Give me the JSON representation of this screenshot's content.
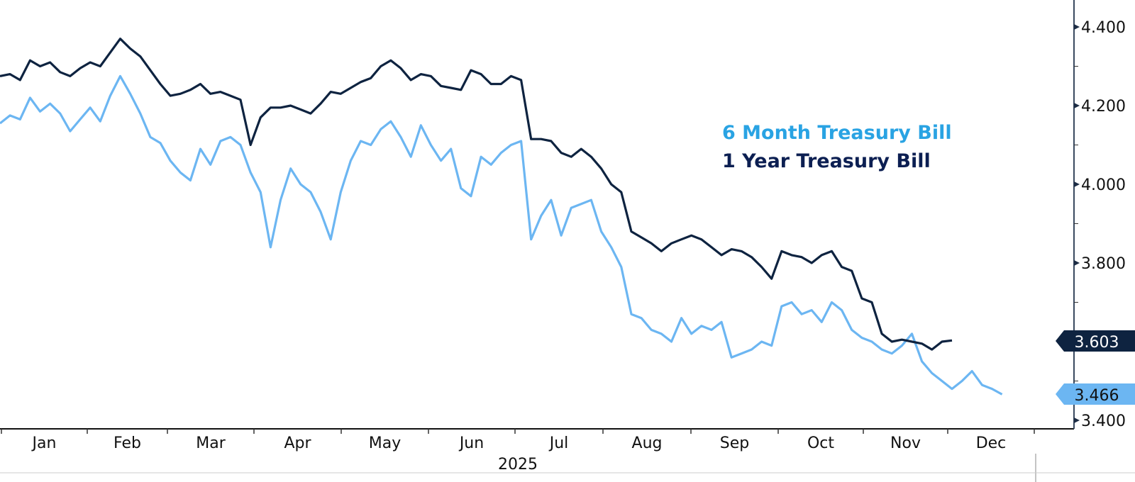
{
  "chart_data": {
    "type": "line",
    "title": "",
    "xlabel": "2025",
    "ylabel": "",
    "year_label": "2025",
    "ylim": [
      3.38,
      4.46
    ],
    "y_axis_position": "right",
    "y_ticks": [
      "4.400",
      "4.200",
      "4.000",
      "3.800",
      "3.400"
    ],
    "y_tick_values": [
      4.4,
      4.2,
      4.0,
      3.8,
      3.4
    ],
    "x_ticks": [
      "Jan",
      "Feb",
      "Mar",
      "Apr",
      "May",
      "Jun",
      "Jul",
      "Aug",
      "Sep",
      "Oct",
      "Nov",
      "Dec"
    ],
    "grid": false,
    "legend_position": "inside-right",
    "legend": [
      "6 Month Treasury Bill",
      "1 Year Treasury Bill"
    ],
    "series": [
      {
        "name": "6 Month Treasury Bill",
        "color": "#6cb6f2",
        "last_value": "3.466",
        "x": [
          0,
          0.5,
          1,
          1.5,
          2,
          2.5,
          3,
          3.5,
          4,
          4.5,
          5,
          5.5,
          6,
          6.5,
          7,
          7.5,
          8,
          8.5,
          9,
          9.5,
          10,
          10.5,
          11,
          11.5,
          12,
          12.5,
          13,
          13.5,
          14,
          14.5,
          15,
          15.5,
          16,
          16.5,
          17,
          17.5,
          18,
          18.5,
          19,
          19.5,
          20,
          20.5,
          21,
          21.5,
          22,
          22.5,
          23,
          23.5,
          24,
          24.5,
          25,
          25.5,
          26,
          26.5,
          27,
          27.5,
          28,
          28.5,
          29,
          29.5,
          30,
          30.5,
          31,
          31.5,
          32,
          32.5,
          33,
          33.5,
          34,
          34.5,
          35,
          35.5,
          36,
          36.5,
          37,
          37.5,
          38,
          38.5,
          39,
          39.5,
          40,
          40.5,
          41,
          41.5,
          42,
          42.5,
          43,
          43.5,
          44,
          44.5,
          45,
          45.5,
          46,
          46.5,
          47,
          47.5,
          48,
          48.5,
          49,
          49.5,
          50,
          50.5,
          51,
          51.5
        ],
        "values": [
          4.155,
          4.175,
          4.165,
          4.22,
          4.185,
          4.205,
          4.18,
          4.135,
          4.165,
          4.195,
          4.16,
          4.225,
          4.275,
          4.23,
          4.18,
          4.12,
          4.105,
          4.06,
          4.03,
          4.01,
          4.09,
          4.05,
          4.11,
          4.12,
          4.1,
          4.03,
          3.98,
          3.84,
          3.96,
          4.04,
          4.0,
          3.98,
          3.93,
          3.86,
          3.98,
          4.06,
          4.11,
          4.1,
          4.14,
          4.16,
          4.12,
          4.07,
          4.15,
          4.1,
          4.06,
          4.09,
          3.99,
          3.97,
          4.07,
          4.05,
          4.08,
          4.1,
          4.11,
          3.86,
          3.92,
          3.96,
          3.87,
          3.94,
          3.95,
          3.96,
          3.88,
          3.84,
          3.79,
          3.67,
          3.66,
          3.63,
          3.62,
          3.6,
          3.66,
          3.62,
          3.64,
          3.63,
          3.65,
          3.56,
          3.57,
          3.58,
          3.6,
          3.59,
          3.69,
          3.7,
          3.67,
          3.68,
          3.65,
          3.7,
          3.68,
          3.63,
          3.61,
          3.6,
          3.58,
          3.57,
          3.59,
          3.62,
          3.55,
          3.52,
          3.5,
          3.48,
          3.5,
          3.525,
          3.49,
          3.48,
          3.466,
          3.466,
          3.466,
          3.466
        ]
      },
      {
        "name": "1 Year Treasury Bill",
        "color": "#0e2340",
        "last_value": "3.603",
        "x": [
          0,
          0.5,
          1,
          1.5,
          2,
          2.5,
          3,
          3.5,
          4,
          4.5,
          5,
          5.5,
          6,
          6.5,
          7,
          7.5,
          8,
          8.5,
          9,
          9.5,
          10,
          10.5,
          11,
          11.5,
          12,
          12.5,
          13,
          13.5,
          14,
          14.5,
          15,
          15.5,
          16,
          16.5,
          17,
          17.5,
          18,
          18.5,
          19,
          19.5,
          20,
          20.5,
          21,
          21.5,
          22,
          22.5,
          23,
          23.5,
          24,
          24.5,
          25,
          25.5,
          26,
          26.5,
          27,
          27.5,
          28,
          28.5,
          29,
          29.5,
          30,
          30.5,
          31,
          31.5,
          32,
          32.5,
          33,
          33.5,
          34,
          34.5,
          35,
          35.5,
          36,
          36.5,
          37,
          37.5,
          38,
          38.5,
          39,
          39.5,
          40,
          40.5,
          41,
          41.5,
          42,
          42.5,
          43,
          43.5,
          44,
          44.5,
          45,
          45.5,
          46,
          46.5,
          47,
          47.5,
          48,
          48.5,
          49,
          49.5,
          50,
          50.5,
          51,
          51.5
        ],
        "values": [
          4.275,
          4.28,
          4.265,
          4.315,
          4.3,
          4.31,
          4.285,
          4.275,
          4.295,
          4.31,
          4.3,
          4.335,
          4.37,
          4.345,
          4.325,
          4.29,
          4.255,
          4.225,
          4.23,
          4.24,
          4.255,
          4.23,
          4.235,
          4.225,
          4.215,
          4.1,
          4.17,
          4.195,
          4.195,
          4.2,
          4.19,
          4.18,
          4.205,
          4.235,
          4.23,
          4.245,
          4.26,
          4.27,
          4.3,
          4.315,
          4.295,
          4.265,
          4.28,
          4.275,
          4.25,
          4.245,
          4.24,
          4.29,
          4.28,
          4.255,
          4.255,
          4.275,
          4.265,
          4.115,
          4.115,
          4.11,
          4.08,
          4.07,
          4.09,
          4.07,
          4.04,
          4.0,
          3.98,
          3.88,
          3.865,
          3.85,
          3.83,
          3.85,
          3.86,
          3.87,
          3.86,
          3.84,
          3.82,
          3.835,
          3.83,
          3.815,
          3.79,
          3.76,
          3.83,
          3.82,
          3.815,
          3.8,
          3.82,
          3.83,
          3.79,
          3.78,
          3.71,
          3.7,
          3.62,
          3.6,
          3.605,
          3.6,
          3.595,
          3.58,
          3.6,
          3.603,
          3.603,
          3.603,
          3.603,
          3.603,
          3.603,
          3.603,
          3.603,
          3.603
        ]
      }
    ]
  },
  "legend": {
    "six_month_label": "6 Month Treasury Bill",
    "one_year_label": "1 Year Treasury Bill",
    "six_month_color": "#29a3e3",
    "one_year_color": "#0c1f52"
  },
  "price_tags": {
    "one_year": "3.603",
    "six_month": "3.466"
  }
}
